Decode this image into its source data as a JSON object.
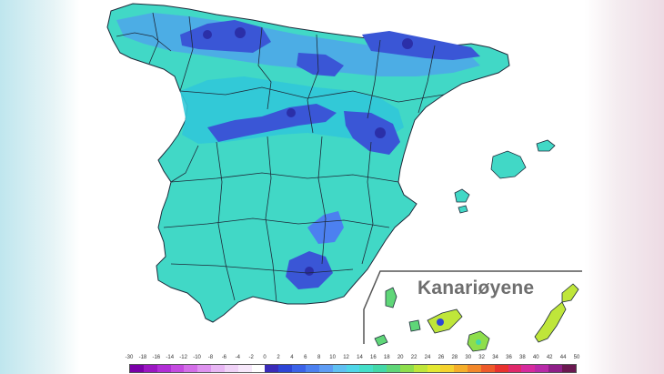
{
  "map": {
    "inset_label": "Kanariøyene"
  },
  "legend": {
    "ticks": [
      "-30",
      "-18",
      "-16",
      "-14",
      "-12",
      "-10",
      "-8",
      "-6",
      "-4",
      "-2",
      "0",
      "2",
      "4",
      "6",
      "8",
      "10",
      "12",
      "14",
      "16",
      "18",
      "20",
      "22",
      "24",
      "26",
      "28",
      "30",
      "32",
      "34",
      "36",
      "38",
      "40",
      "42",
      "44",
      "50"
    ],
    "colors": [
      "#7a00a8",
      "#9b17c2",
      "#b12ed6",
      "#c44be0",
      "#d36ee8",
      "#de92ef",
      "#e8b6f4",
      "#f0d2f7",
      "#f7e8fb",
      "#ffffff",
      "#3a2bb8",
      "#2d45d6",
      "#3b62e8",
      "#4c80f0",
      "#5e9cf4",
      "#5fc0f2",
      "#4fd6e8",
      "#44dec8",
      "#43d8a8",
      "#5fd678",
      "#8ede4c",
      "#bfe63a",
      "#e3e832",
      "#f5d22e",
      "#f5ae2a",
      "#f2872a",
      "#ee5a2a",
      "#e8322e",
      "#e0286a",
      "#d62a9e",
      "#b82aa8",
      "#8e1f88",
      "#6a1850"
    ],
    "palette": {
      "sea": "#ffffff",
      "land_base": "#41d8c6",
      "land_cool": "#31c8d8",
      "land_cold": "#4fa6ea",
      "mountain": "#3a56d6",
      "peak": "#2b2fa8",
      "border": "#1e2a3a"
    }
  }
}
